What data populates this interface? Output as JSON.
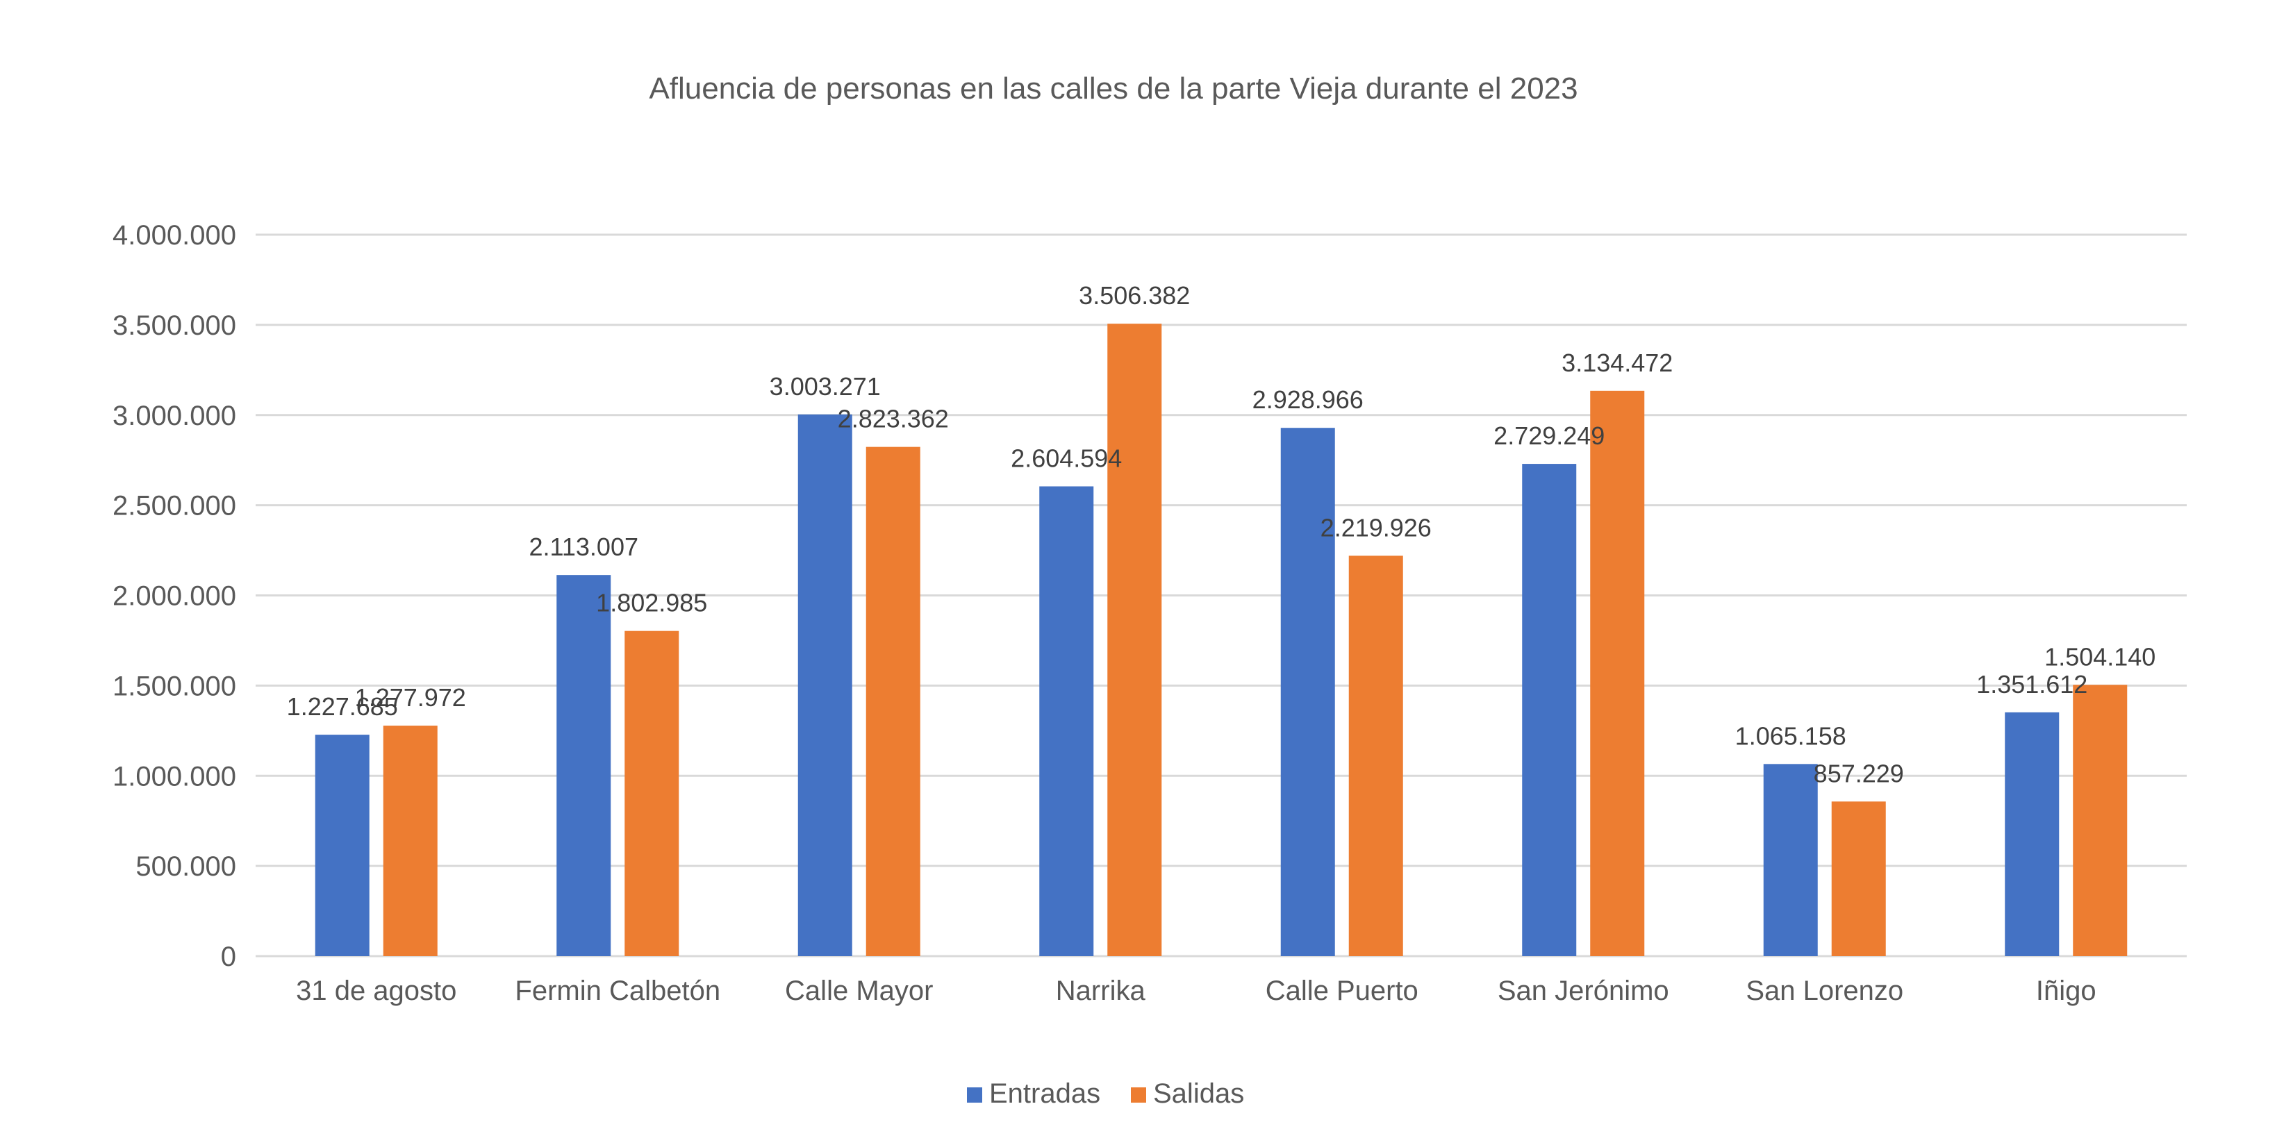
{
  "chart_data": {
    "type": "bar",
    "title": "Afluencia de personas en las calles de la parte Vieja durante el 2023",
    "xlabel": "",
    "ylabel": "",
    "categories": [
      "31 de agosto",
      "Fermin Calbetón",
      "Calle Mayor",
      "Narrika",
      "Calle Puerto",
      "San Jerónimo",
      "San Lorenzo",
      "Iñigo"
    ],
    "series": [
      {
        "name": "Entradas",
        "color": "#4472C4",
        "values": [
          1227685,
          2113007,
          3003271,
          2604594,
          2928966,
          2729249,
          1065158,
          1351612
        ],
        "labels": [
          "1.227.685",
          "2.113.007",
          "3.003.271",
          "2.604.594",
          "2.928.966",
          "2.729.249",
          "1.065.158",
          "1.351.612"
        ]
      },
      {
        "name": "Salidas",
        "color": "#ED7D31",
        "values": [
          1277972,
          1802985,
          2823362,
          3506382,
          2219926,
          3134472,
          857229,
          1504140
        ],
        "labels": [
          "1.277.972",
          "1.802.985",
          "2.823.362",
          "3.506.382",
          "2.219.926",
          "3.134.472",
          "857.229",
          "1.504.140"
        ]
      }
    ],
    "ylim": [
      0,
      4000000
    ],
    "yticks": [
      {
        "value": 0,
        "label": "0"
      },
      {
        "value": 500000,
        "label": "500.000"
      },
      {
        "value": 1000000,
        "label": "1.000.000"
      },
      {
        "value": 1500000,
        "label": "1.500.000"
      },
      {
        "value": 2000000,
        "label": "2.000.000"
      },
      {
        "value": 2500000,
        "label": "2.500.000"
      },
      {
        "value": 3000000,
        "label": "3.000.000"
      },
      {
        "value": 3500000,
        "label": "3.500.000"
      },
      {
        "value": 4000000,
        "label": "4.000.000"
      }
    ],
    "grid": true,
    "legend": "bottom"
  }
}
